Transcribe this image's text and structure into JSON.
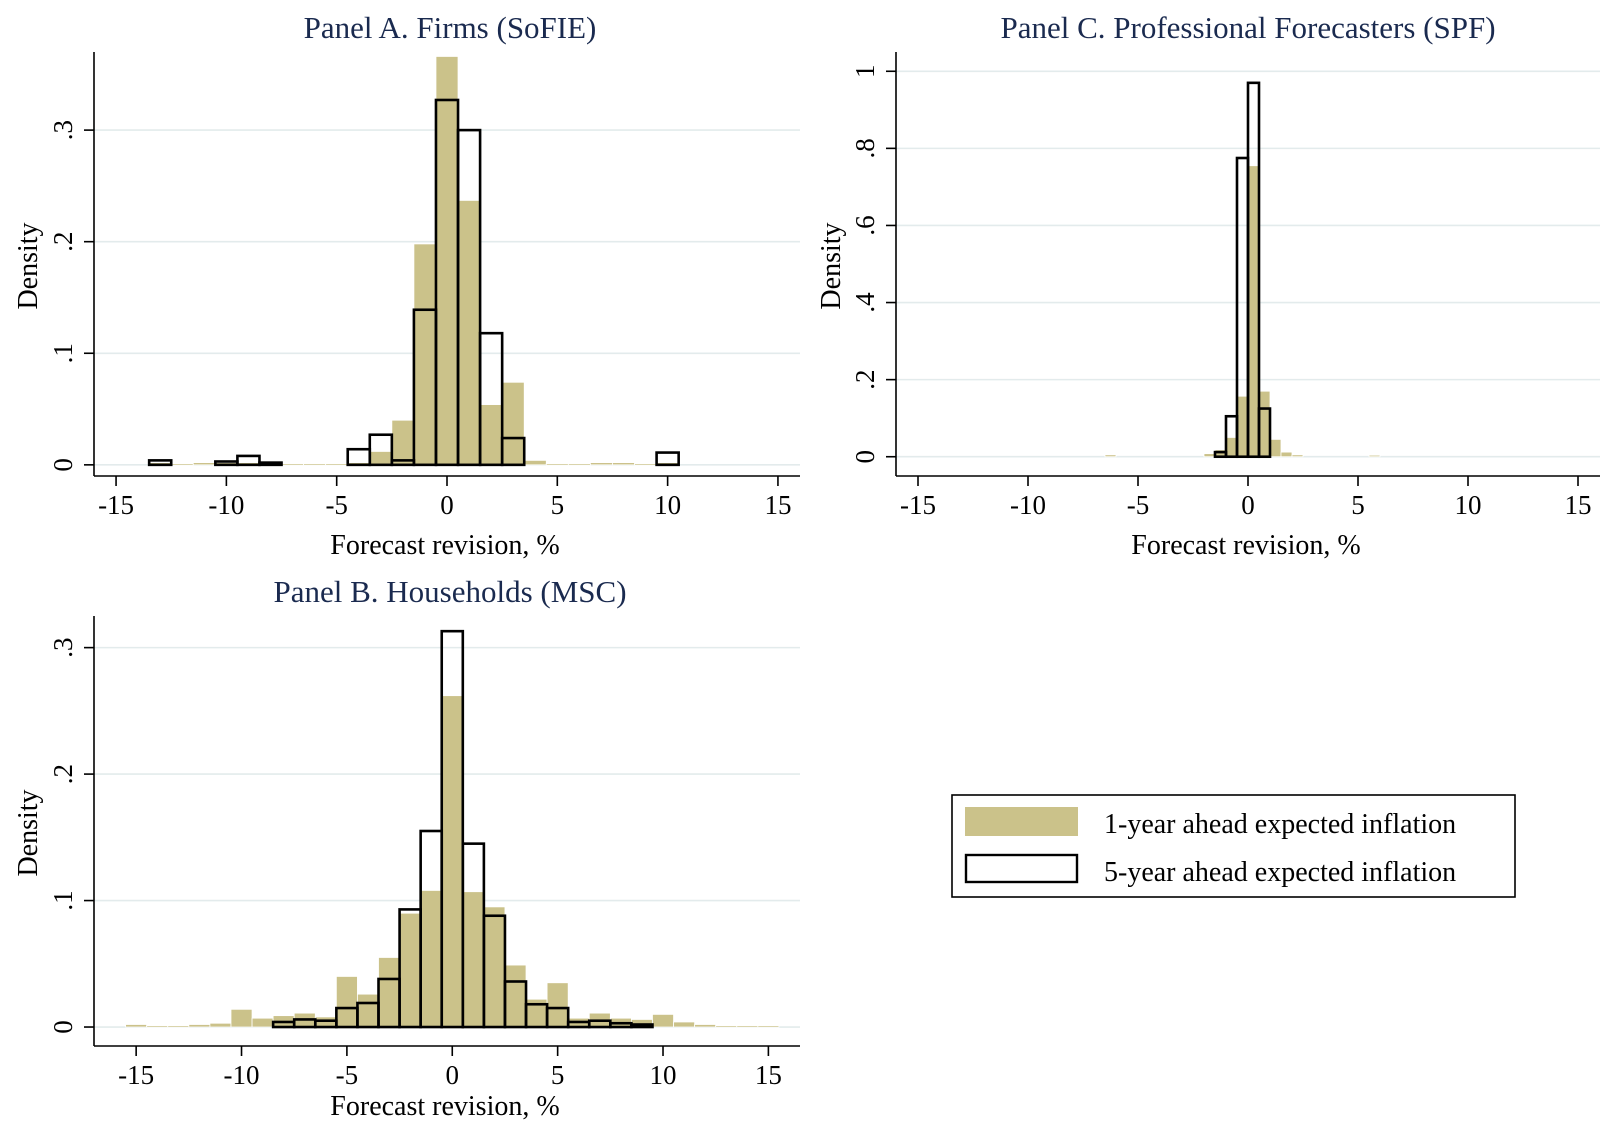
{
  "colors": {
    "bar1": "#cbc28a",
    "bar5_stroke": "#000000",
    "grid": "#e3ebec",
    "title": "#1a2a4f"
  },
  "legend": {
    "items": [
      {
        "label": "1-year ahead expected inflation",
        "style": "filled"
      },
      {
        "label": "5-year ahead expected inflation",
        "style": "outline"
      }
    ]
  },
  "chart_data": [
    {
      "type": "bar",
      "id": "panelA",
      "title": "Panel A. Firms (SoFIE)",
      "xlabel": "Forecast revision, %",
      "ylabel": "Density",
      "xlim": [
        -16,
        16
      ],
      "ylim": [
        -0.01,
        0.37
      ],
      "xticks": [
        -15,
        -10,
        -5,
        0,
        5,
        10,
        15
      ],
      "xtick_labels": [
        "-15",
        "-10",
        "-5",
        "0",
        "5",
        "10",
        "15"
      ],
      "yticks": [
        0,
        0.1,
        0.2,
        0.3
      ],
      "ytick_labels": [
        "0",
        ".1",
        ".2",
        ".3"
      ],
      "series": [
        {
          "name": "1-year ahead expected inflation",
          "style": "filled",
          "bin_width": 1,
          "bins": [
            [
              -13,
              0.002
            ],
            [
              -12,
              0.001
            ],
            [
              -11,
              0.002
            ],
            [
              -10,
              0.002
            ],
            [
              -9,
              0.002
            ],
            [
              -8,
              0.001
            ],
            [
              -7,
              0.001
            ],
            [
              -6,
              0.001
            ],
            [
              -5,
              0.001
            ],
            [
              -4,
              0.002
            ],
            [
              -3,
              0.012
            ],
            [
              -2,
              0.04
            ],
            [
              -1,
              0.198
            ],
            [
              0,
              0.366
            ],
            [
              1,
              0.237
            ],
            [
              2,
              0.054
            ],
            [
              3,
              0.074
            ],
            [
              4,
              0.004
            ],
            [
              5,
              0.001
            ],
            [
              6,
              0.001
            ],
            [
              7,
              0.002
            ],
            [
              8,
              0.002
            ],
            [
              9,
              0.001
            ],
            [
              10,
              0.002
            ]
          ]
        },
        {
          "name": "5-year ahead expected inflation",
          "style": "outline",
          "bin_width": 1,
          "bins": [
            [
              -13,
              0.004
            ],
            [
              -10,
              0.003
            ],
            [
              -9,
              0.008
            ],
            [
              -8,
              0.002
            ],
            [
              -4,
              0.014
            ],
            [
              -3,
              0.027
            ],
            [
              -2,
              0.004
            ],
            [
              -1,
              0.139
            ],
            [
              0,
              0.327
            ],
            [
              1,
              0.3
            ],
            [
              2,
              0.118
            ],
            [
              3,
              0.024
            ],
            [
              10,
              0.011
            ]
          ]
        }
      ]
    },
    {
      "type": "bar",
      "id": "panelC",
      "title": "Panel C. Professional Forecasters (SPF)",
      "xlabel": "Forecast revision, %",
      "ylabel": "Density",
      "xlim": [
        -16,
        16
      ],
      "ylim": [
        -0.05,
        1.05
      ],
      "xticks": [
        -15,
        -10,
        -5,
        0,
        5,
        10,
        15
      ],
      "xtick_labels": [
        "-15",
        "-10",
        "-5",
        "0",
        "5",
        "10",
        "15"
      ],
      "yticks": [
        0,
        0.2,
        0.4,
        0.6,
        0.8,
        1
      ],
      "ytick_labels": [
        "0",
        ".2",
        ".4",
        ".6",
        ".8",
        "1"
      ],
      "series": [
        {
          "name": "1-year ahead expected inflation",
          "style": "filled",
          "bin_width": 0.5,
          "bins": [
            [
              -6.25,
              0.005
            ],
            [
              -1.75,
              0.008
            ],
            [
              -1.25,
              0.018
            ],
            [
              -0.75,
              0.05
            ],
            [
              -0.25,
              0.157
            ],
            [
              0.25,
              0.755
            ],
            [
              0.75,
              0.17
            ],
            [
              1.25,
              0.045
            ],
            [
              1.75,
              0.012
            ],
            [
              2.25,
              0.005
            ],
            [
              5.75,
              0.004
            ]
          ]
        },
        {
          "name": "5-year ahead expected inflation",
          "style": "outline",
          "bin_width": 0.5,
          "bins": [
            [
              -1.25,
              0.012
            ],
            [
              -0.75,
              0.105
            ],
            [
              -0.25,
              0.775
            ],
            [
              0.25,
              0.97
            ],
            [
              0.75,
              0.125
            ]
          ]
        }
      ]
    },
    {
      "type": "bar",
      "id": "panelB",
      "title": "Panel B. Households (MSC)",
      "xlabel": "Forecast revision, %",
      "ylabel": "Density",
      "xlim": [
        -17,
        16.5
      ],
      "ylim": [
        -0.015,
        0.325
      ],
      "xticks": [
        -15,
        -10,
        -5,
        0,
        5,
        10,
        15
      ],
      "xtick_labels": [
        "-15",
        "-10",
        "-5",
        "0",
        "5",
        "10",
        "15"
      ],
      "yticks": [
        0,
        0.1,
        0.2,
        0.3
      ],
      "ytick_labels": [
        "0",
        ".1",
        ".2",
        ".3"
      ],
      "series": [
        {
          "name": "1-year ahead expected inflation",
          "style": "filled",
          "bin_width": 1,
          "bins": [
            [
              -15,
              0.002
            ],
            [
              -14,
              0.001
            ],
            [
              -13,
              0.001
            ],
            [
              -12,
              0.002
            ],
            [
              -11,
              0.003
            ],
            [
              -10,
              0.014
            ],
            [
              -9,
              0.007
            ],
            [
              -8,
              0.009
            ],
            [
              -7,
              0.011
            ],
            [
              -6,
              0.008
            ],
            [
              -5,
              0.04
            ],
            [
              -4,
              0.026
            ],
            [
              -3,
              0.055
            ],
            [
              -2,
              0.09
            ],
            [
              -1,
              0.108
            ],
            [
              0,
              0.262
            ],
            [
              1,
              0.107
            ],
            [
              2,
              0.095
            ],
            [
              3,
              0.049
            ],
            [
              4,
              0.022
            ],
            [
              5,
              0.035
            ],
            [
              6,
              0.007
            ],
            [
              7,
              0.011
            ],
            [
              8,
              0.007
            ],
            [
              9,
              0.006
            ],
            [
              10,
              0.01
            ],
            [
              11,
              0.004
            ],
            [
              12,
              0.002
            ],
            [
              13,
              0.001
            ],
            [
              14,
              0.001
            ],
            [
              15,
              0.001
            ]
          ]
        },
        {
          "name": "5-year ahead expected inflation",
          "style": "outline",
          "bin_width": 1,
          "bins": [
            [
              -8,
              0.004
            ],
            [
              -7,
              0.006
            ],
            [
              -6,
              0.005
            ],
            [
              -5,
              0.015
            ],
            [
              -4,
              0.019
            ],
            [
              -3,
              0.038
            ],
            [
              -2,
              0.093
            ],
            [
              -1,
              0.155
            ],
            [
              0,
              0.313
            ],
            [
              1,
              0.145
            ],
            [
              2,
              0.088
            ],
            [
              3,
              0.036
            ],
            [
              4,
              0.018
            ],
            [
              5,
              0.015
            ],
            [
              6,
              0.004
            ],
            [
              7,
              0.005
            ],
            [
              8,
              0.003
            ],
            [
              9,
              0.002
            ]
          ]
        }
      ]
    }
  ]
}
